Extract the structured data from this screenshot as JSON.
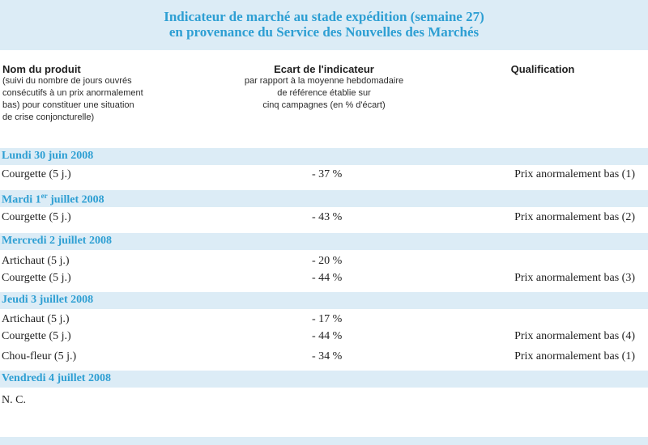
{
  "title": {
    "line1": "Indicateur de marché au stade expédition (semaine 27)",
    "line2": "en provenance du Service des Nouvelles des Marchés"
  },
  "columns": {
    "col1_head": "Nom du produit",
    "col1_sub": [
      "(suivi du nombre de jours ouvrés",
      "consécutifs à un prix anormalement",
      "bas) pour constituer une situation",
      "de crise conjoncturelle)"
    ],
    "col2_head": "Ecart de l'indicateur",
    "col2_sub": [
      "par rapport à la moyenne hebdomadaire",
      "de référence établie sur",
      "cinq campagnes (en % d'écart)"
    ],
    "col3_head": "Qualification"
  },
  "sections": [
    {
      "date": "Lundi 30 juin 2008",
      "rows": [
        {
          "product": "Courgette (5 j.)",
          "value": "- 37 %",
          "qualification": "Prix anormalement bas (1)"
        }
      ]
    },
    {
      "date_pre": "Mardi 1",
      "date_sup": "er",
      "date_post": " juillet 2008",
      "rows": [
        {
          "product": "Courgette (5 j.)",
          "value": "- 43 %",
          "qualification": "Prix anormalement bas (2)"
        }
      ]
    },
    {
      "date": "Mercredi 2 juillet 2008",
      "rows": [
        {
          "product": "Artichaut (5 j.)",
          "value": "- 20 %",
          "qualification": ""
        },
        {
          "product": "Courgette (5 j.)",
          "value": "- 44 %",
          "qualification": "Prix anormalement bas (3)"
        }
      ]
    },
    {
      "date": "Jeudi 3 juillet 2008",
      "rows": [
        {
          "product": "Artichaut (5 j.)",
          "value": "- 17 %",
          "qualification": ""
        },
        {
          "product": "Courgette (5 j.)",
          "value": "- 44 %",
          "qualification": "Prix anormalement bas (4)"
        },
        {
          "product": "Chou-fleur (5 j.)",
          "value": "- 34 %",
          "qualification": "Prix anormalement bas (1)"
        }
      ]
    },
    {
      "date": "Vendredi 4 juillet 2008",
      "rows": [
        {
          "product": "N. C.",
          "value": "",
          "qualification": ""
        }
      ]
    }
  ]
}
